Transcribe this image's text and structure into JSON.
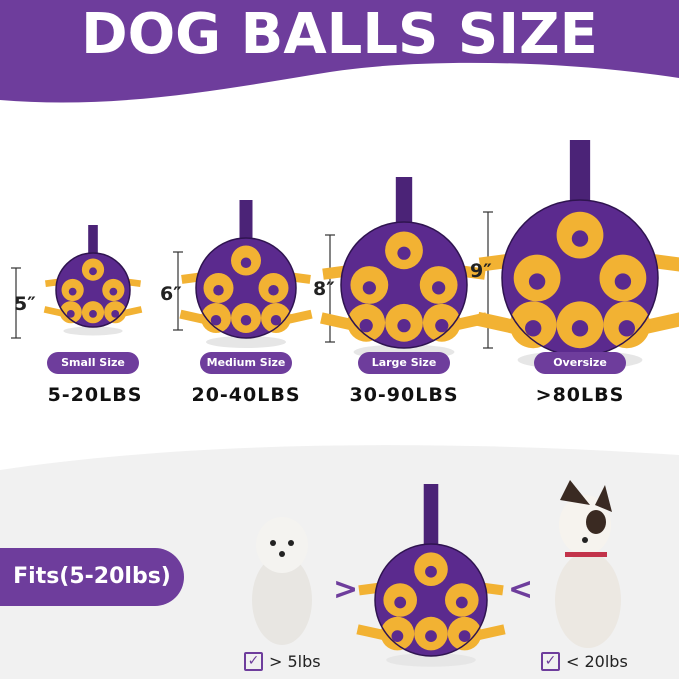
{
  "title": "DOG BALLS SIZE",
  "colors": {
    "brand_purple": "#6e3d9c",
    "ball_purple": "#5b2a8e",
    "ball_yellow": "#f2b233"
  },
  "sizes": [
    {
      "dimension": "5″",
      "label": "Small Size",
      "weight": "5-20LBS"
    },
    {
      "dimension": "6″",
      "label": "Medium Size",
      "weight": "20-40LBS"
    },
    {
      "dimension": "8″",
      "label": "Large Size",
      "weight": "30-90LBS"
    },
    {
      "dimension": "9″",
      "label": "Oversize",
      "weight": ">80LBS"
    }
  ],
  "fits": {
    "label": "Fits(5-20lbs)",
    "greater": ">",
    "less": "<",
    "min_label": "> 5lbs",
    "max_label": "< 20lbs",
    "check_icon": "checkbox-checked-icon"
  }
}
